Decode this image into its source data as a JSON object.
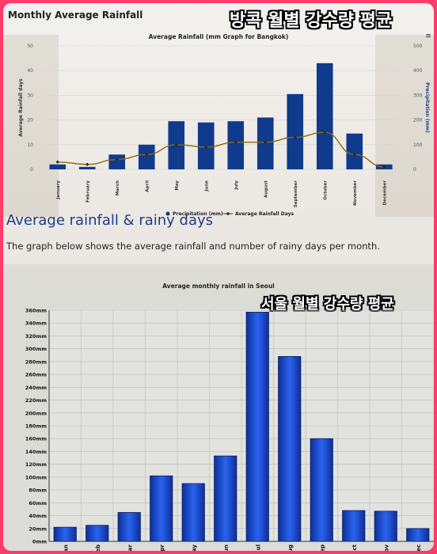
{
  "header": {
    "page_title": "Monthly Average Rainfall",
    "overlay_title_bangkok": "방콕 월별 강수량 평균",
    "overlay_title_seoul": "서울 월별 강수량 평균"
  },
  "section": {
    "heading": "Average rainfall & rainy days",
    "description": "The graph below shows the average rainfall and number of rainy days per month."
  },
  "colors": {
    "bar_bangkok": "#103a8c",
    "line_bangkok": "#8a6a10",
    "bar_seoul": "#1a4fd6",
    "grid": "#c8c8c8"
  },
  "chart_data": [
    {
      "type": "bar",
      "title": "Average Rainfall (mm Graph for Bangkok)",
      "categories": [
        "January",
        "February",
        "March",
        "April",
        "May",
        "June",
        "July",
        "August",
        "September",
        "October",
        "November",
        "December"
      ],
      "series": [
        {
          "name": "Precipitation (mm)",
          "axis": "right",
          "values": [
            20,
            10,
            60,
            100,
            195,
            190,
            195,
            210,
            305,
            430,
            145,
            20
          ]
        },
        {
          "name": "Average Rainfall Days",
          "axis": "left",
          "type": "line",
          "values": [
            3,
            2,
            4,
            6,
            10,
            9,
            11,
            11,
            13,
            15,
            6,
            1
          ]
        }
      ],
      "y_left_label": "Average Rainfall days",
      "y_left_ticks": [
        0,
        10,
        20,
        30,
        40,
        50
      ],
      "y_left_lim": [
        0,
        50
      ],
      "y_right_label": "Precipitation (mm)",
      "y_right_ticks": [
        0,
        100,
        200,
        300,
        400,
        500
      ],
      "y_right_lim": [
        0,
        500
      ],
      "legend": "bottom-center",
      "grid": true
    },
    {
      "type": "bar",
      "title": "Average monthly rainfall in Seoul",
      "categories": [
        "Jan",
        "Feb",
        "Mar",
        "Apr",
        "May",
        "Jun",
        "Jul",
        "Aug",
        "Sep",
        "Oct",
        "Nov",
        "Dec"
      ],
      "values": [
        22,
        25,
        45,
        102,
        90,
        133,
        357,
        288,
        160,
        48,
        47,
        20
      ],
      "ylim": [
        0,
        360
      ],
      "y_tick_labels": [
        "0mm",
        "20mm",
        "40mm",
        "60mm",
        "80mm",
        "100mm",
        "120mm",
        "140mm",
        "160mm",
        "180mm",
        "200mm",
        "220mm",
        "240mm",
        "260mm",
        "280mm",
        "300mm",
        "320mm",
        "340mm",
        "360mm"
      ],
      "grid": true
    }
  ]
}
